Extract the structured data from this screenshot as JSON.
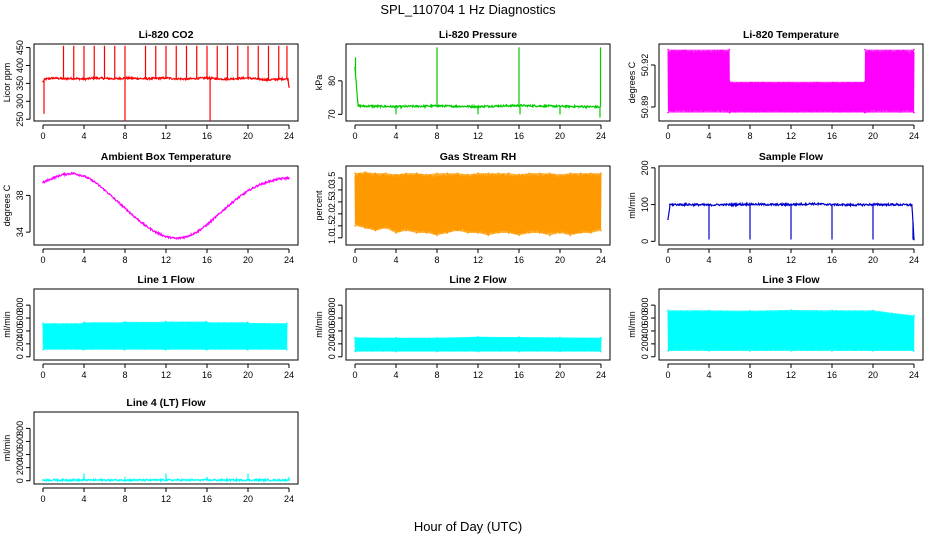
{
  "figure": {
    "title": "SPL_110704  1 Hz Diagnostics",
    "xlabel": "Hour of Day (UTC)"
  },
  "chart_data": [
    {
      "type": "line",
      "title": "Li-820 CO2",
      "ylabel": "Licor ppm",
      "xlim": [
        0,
        24
      ],
      "ylim": [
        245,
        460
      ],
      "xticks": [
        "0",
        "4",
        "8",
        "12",
        "16",
        "20",
        "24"
      ],
      "yticks": [
        "250",
        "300",
        "350",
        "400",
        "450"
      ],
      "color": "#ff0000",
      "series": [
        {
          "x": [
            0.0,
            0.2,
            1,
            2,
            3,
            4,
            5,
            6,
            7,
            8,
            9,
            10,
            11,
            12,
            13,
            14,
            15,
            16,
            17,
            18,
            19,
            20,
            21,
            22,
            23,
            23.9,
            24.0
          ],
          "y": [
            355,
            362,
            365,
            363,
            364,
            362,
            365,
            364,
            363,
            365,
            364,
            363,
            364,
            365,
            363,
            362,
            364,
            365,
            363,
            362,
            364,
            365,
            362,
            360,
            362,
            363,
            340
          ]
        }
      ],
      "spikes": [
        {
          "x": 0.1,
          "y": 265
        },
        {
          "x": 2.0,
          "y": 455
        },
        {
          "x": 3.0,
          "y": 455
        },
        {
          "x": 4.0,
          "y": 455
        },
        {
          "x": 5.0,
          "y": 455
        },
        {
          "x": 6.0,
          "y": 455
        },
        {
          "x": 7.0,
          "y": 455
        },
        {
          "x": 8.0,
          "y": 455
        },
        {
          "x": 8.0,
          "y": 245
        },
        {
          "x": 10.0,
          "y": 455
        },
        {
          "x": 11.0,
          "y": 455
        },
        {
          "x": 12.0,
          "y": 455
        },
        {
          "x": 13.0,
          "y": 455
        },
        {
          "x": 14.0,
          "y": 455
        },
        {
          "x": 15.0,
          "y": 455
        },
        {
          "x": 16.0,
          "y": 455
        },
        {
          "x": 16.3,
          "y": 245
        },
        {
          "x": 17.0,
          "y": 455
        },
        {
          "x": 18.0,
          "y": 455
        },
        {
          "x": 19.0,
          "y": 455
        },
        {
          "x": 20.0,
          "y": 455
        },
        {
          "x": 21.0,
          "y": 455
        },
        {
          "x": 22.0,
          "y": 455
        },
        {
          "x": 23.0,
          "y": 455
        },
        {
          "x": 23.8,
          "y": 455
        }
      ]
    },
    {
      "type": "line",
      "title": "Li-820 Pressure",
      "ylabel": "kPa",
      "xlim": [
        0,
        24
      ],
      "ylim": [
        68,
        91
      ],
      "xticks": [
        "0",
        "4",
        "8",
        "12",
        "16",
        "20",
        "24"
      ],
      "yticks": [
        "70",
        "80"
      ],
      "color": "#00cc00",
      "series": [
        {
          "x": [
            0,
            0.3,
            2,
            4,
            6,
            8,
            10,
            12,
            14,
            16,
            18,
            20,
            22,
            23.8
          ],
          "y": [
            84,
            72.5,
            72.4,
            72.3,
            72.4,
            72.5,
            72.4,
            72.3,
            72.5,
            72.6,
            72.5,
            72.4,
            72.3,
            72.2
          ]
        }
      ],
      "spikes": [
        {
          "x": 0.05,
          "y": 87
        },
        {
          "x": 8.0,
          "y": 90
        },
        {
          "x": 16.0,
          "y": 90
        },
        {
          "x": 23.95,
          "y": 90
        },
        {
          "x": 4.0,
          "y": 70
        },
        {
          "x": 12.0,
          "y": 70
        },
        {
          "x": 16.1,
          "y": 70
        },
        {
          "x": 20.0,
          "y": 70
        },
        {
          "x": 23.9,
          "y": 69
        }
      ]
    },
    {
      "type": "area",
      "title": "Li-820 Temperature",
      "ylabel": "degrees C",
      "xlim": [
        0,
        24
      ],
      "ylim": [
        50.88,
        50.935
      ],
      "xticks": [
        "0",
        "4",
        "8",
        "12",
        "16",
        "20",
        "24"
      ],
      "yticks": [
        "50.89",
        "50.92"
      ],
      "color": "#ff00ff",
      "series": [
        {
          "x": [
            0,
            6.0,
            6.01,
            19.2,
            19.21,
            24
          ],
          "y_low": [
            50.886,
            50.886,
            50.886,
            50.886,
            50.886,
            50.886
          ],
          "y_high": [
            50.931,
            50.931,
            50.908,
            50.908,
            50.931,
            50.931
          ]
        }
      ]
    },
    {
      "type": "line",
      "title": "Ambient Box Temperature",
      "ylabel": "degrees C",
      "xlim": [
        0,
        24
      ],
      "ylim": [
        32.6,
        41.2
      ],
      "xticks": [
        "0",
        "4",
        "8",
        "12",
        "16",
        "20",
        "24"
      ],
      "yticks": [
        "34",
        "38"
      ],
      "color": "#ff00ff",
      "series": [
        {
          "x": [
            0,
            1,
            2,
            3,
            4,
            5,
            6,
            7,
            8,
            9,
            10,
            11,
            12,
            13,
            14,
            15,
            16,
            17,
            18,
            19,
            20,
            21,
            22,
            23,
            24
          ],
          "y": [
            39.4,
            39.9,
            40.3,
            40.4,
            40.1,
            39.5,
            38.6,
            37.6,
            36.6,
            35.6,
            34.7,
            34.0,
            33.5,
            33.3,
            33.5,
            34.0,
            34.8,
            35.8,
            36.8,
            37.7,
            38.5,
            39.1,
            39.5,
            39.8,
            39.9
          ]
        }
      ]
    },
    {
      "type": "area",
      "title": "Gas Stream RH",
      "ylabel": "percent",
      "xlim": [
        0,
        24
      ],
      "ylim": [
        0.7,
        4.0
      ],
      "xticks": [
        "0",
        "4",
        "8",
        "12",
        "16",
        "20",
        "24"
      ],
      "yticks": [
        "1.0",
        "1.5",
        "2.0",
        "2.5",
        "3.0",
        "3.5"
      ],
      "color": "#ff9900",
      "series": [
        {
          "x": [
            0,
            1,
            2,
            3,
            4,
            5,
            6,
            7,
            8,
            9,
            10,
            11,
            12,
            13,
            14,
            15,
            16,
            17,
            18,
            19,
            20,
            21,
            22,
            23,
            24
          ],
          "y_low": [
            1.5,
            1.4,
            1.3,
            1.4,
            1.2,
            1.3,
            1.2,
            1.2,
            1.1,
            1.2,
            1.3,
            1.2,
            1.2,
            1.1,
            1.2,
            1.2,
            1.1,
            1.2,
            1.2,
            1.1,
            1.2,
            1.1,
            1.2,
            1.2,
            1.3
          ],
          "y_high": [
            3.7,
            3.75,
            3.7,
            3.7,
            3.65,
            3.7,
            3.7,
            3.65,
            3.7,
            3.7,
            3.7,
            3.65,
            3.7,
            3.7,
            3.7,
            3.7,
            3.65,
            3.7,
            3.7,
            3.7,
            3.65,
            3.7,
            3.7,
            3.7,
            3.7
          ]
        }
      ]
    },
    {
      "type": "line",
      "title": "Sample Flow",
      "ylabel": "ml/min",
      "xlim": [
        0,
        24
      ],
      "ylim": [
        -10,
        205
      ],
      "xticks": [
        "0",
        "4",
        "8",
        "12",
        "16",
        "20",
        "24"
      ],
      "yticks": [
        "0",
        "100",
        "200"
      ],
      "color": "#0000cc",
      "series": [
        {
          "x": [
            0,
            0.2,
            2,
            4,
            6,
            8,
            10,
            12,
            14,
            16,
            18,
            20,
            22,
            23.8,
            24
          ],
          "y": [
            60,
            100,
            100,
            99,
            100,
            101,
            100,
            100,
            102,
            100,
            99,
            100,
            100,
            99,
            5
          ]
        }
      ],
      "spikes": [
        {
          "x": 4.0,
          "y": 5
        },
        {
          "x": 8.0,
          "y": 5
        },
        {
          "x": 12.0,
          "y": 5
        },
        {
          "x": 16.0,
          "y": 5
        },
        {
          "x": 20.0,
          "y": 5
        },
        {
          "x": 23.9,
          "y": 5
        }
      ]
    },
    {
      "type": "area",
      "title": "Line 1 Flow",
      "ylabel": "ml/min",
      "xlim": [
        0,
        24
      ],
      "ylim": [
        -50,
        1050
      ],
      "xticks": [
        "0",
        "4",
        "8",
        "12",
        "16",
        "20",
        "24"
      ],
      "yticks": [
        "0",
        "200",
        "400",
        "600",
        "800"
      ],
      "color": "#00ffff",
      "series": [
        {
          "x": [
            0,
            3.9,
            4.0,
            7.9,
            8.0,
            11.9,
            12.0,
            15.9,
            16.0,
            19.9,
            20.0,
            23.8
          ],
          "y_low": [
            110,
            110,
            110,
            110,
            110,
            110,
            110,
            110,
            110,
            110,
            110,
            110
          ],
          "y_high": [
            520,
            520,
            535,
            535,
            540,
            540,
            545,
            545,
            535,
            535,
            525,
            520
          ]
        }
      ]
    },
    {
      "type": "area",
      "title": "Line 2 Flow",
      "ylabel": "ml/min",
      "xlim": [
        0,
        24
      ],
      "ylim": [
        -50,
        1050
      ],
      "xticks": [
        "0",
        "4",
        "8",
        "12",
        "16",
        "20",
        "24"
      ],
      "yticks": [
        "0",
        "200",
        "400",
        "600",
        "800"
      ],
      "color": "#00ffff",
      "series": [
        {
          "x": [
            0,
            4,
            8,
            12,
            16,
            20,
            24
          ],
          "y_low": [
            80,
            80,
            80,
            80,
            80,
            80,
            80
          ],
          "y_high": [
            300,
            295,
            295,
            310,
            305,
            300,
            295
          ]
        }
      ]
    },
    {
      "type": "area",
      "title": "Line 3 Flow",
      "ylabel": "ml/min",
      "xlim": [
        0,
        24
      ],
      "ylim": [
        -50,
        1050
      ],
      "xticks": [
        "0",
        "4",
        "8",
        "12",
        "16",
        "20",
        "24"
      ],
      "yticks": [
        "0",
        "200",
        "400",
        "600",
        "800"
      ],
      "color": "#00ffff",
      "series": [
        {
          "x": [
            0,
            4,
            8,
            12,
            16,
            20,
            24
          ],
          "y_low": [
            90,
            90,
            90,
            90,
            90,
            90,
            90
          ],
          "y_high": [
            720,
            720,
            715,
            725,
            720,
            720,
            640
          ]
        }
      ]
    },
    {
      "type": "line",
      "title": "Line 4 (LT) Flow",
      "ylabel": "ml/min",
      "xlim": [
        0,
        24
      ],
      "ylim": [
        -50,
        1050
      ],
      "xticks": [
        "0",
        "4",
        "8",
        "12",
        "16",
        "20",
        "24"
      ],
      "yticks": [
        "0",
        "200",
        "400",
        "600",
        "800"
      ],
      "color": "#00ffff",
      "series": [
        {
          "x": [
            0,
            24
          ],
          "y": [
            10,
            10
          ]
        }
      ],
      "spikes": [
        {
          "x": 4.0,
          "y": 110
        },
        {
          "x": 8.0,
          "y": 60
        },
        {
          "x": 12.0,
          "y": 110
        },
        {
          "x": 16.0,
          "y": 60
        },
        {
          "x": 20.0,
          "y": 110
        },
        {
          "x": 24.0,
          "y": 60
        }
      ]
    }
  ]
}
